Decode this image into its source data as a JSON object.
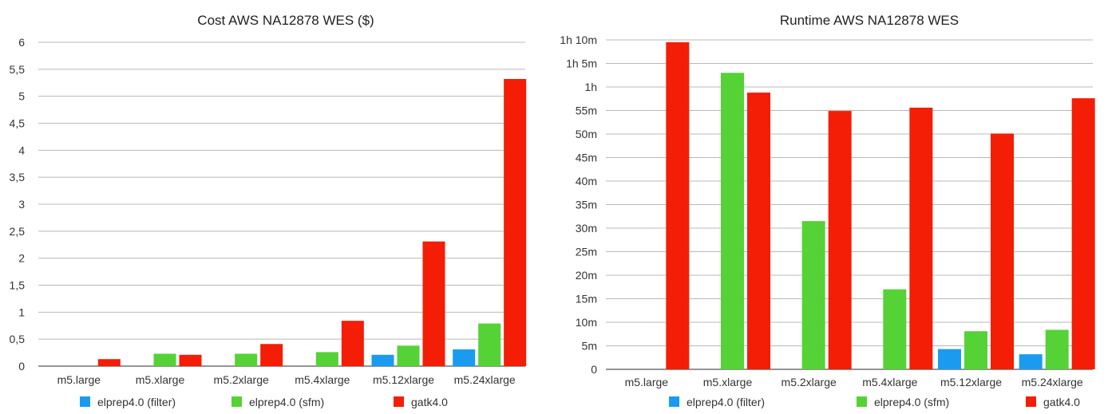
{
  "chart_data": [
    {
      "type": "bar",
      "title": "Cost AWS NA12878 WES ($)",
      "xlabel": "",
      "ylabel": "",
      "categories": [
        "m5.large",
        "m5.xlarge",
        "m5.2xlarge",
        "m5.4xlarge",
        "m5.12xlarge",
        "m5.24xlarge"
      ],
      "ylim": [
        0,
        6
      ],
      "yticks": [
        "0",
        "0,5",
        "1",
        "1,5",
        "2",
        "2,5",
        "3",
        "3,5",
        "4",
        "4,5",
        "5",
        "5,5",
        "6"
      ],
      "grid": true,
      "legend_position": "bottom",
      "series": [
        {
          "name": "elprep4.0 (filter)",
          "color": "#1a9bf0",
          "values": [
            null,
            null,
            null,
            null,
            0.21,
            0.31
          ]
        },
        {
          "name": "elprep4.0 (sfm)",
          "color": "#55d235",
          "values": [
            null,
            0.23,
            0.23,
            0.26,
            0.38,
            0.79
          ]
        },
        {
          "name": "gatk4.0",
          "color": "#f41d05",
          "values": [
            0.13,
            0.21,
            0.41,
            0.84,
            2.31,
            5.32
          ]
        }
      ]
    },
    {
      "type": "bar",
      "title": "Runtime AWS NA12878 WES",
      "xlabel": "",
      "ylabel": "",
      "categories": [
        "m5.large",
        "m5.xlarge",
        "m5.2xlarge",
        "m5.4xlarge",
        "m5.12xlarge",
        "m5.24xlarge"
      ],
      "ylim": [
        0,
        70
      ],
      "yunit": "minutes",
      "yticks": [
        "0",
        "5m",
        "10m",
        "15m",
        "20m",
        "25m",
        "30m",
        "35m",
        "40m",
        "45m",
        "50m",
        "55m",
        "1h",
        "1h 5m",
        "1h 10m"
      ],
      "grid": true,
      "legend_position": "bottom",
      "series": [
        {
          "name": "elprep4.0 (filter)",
          "color": "#1a9bf0",
          "values": [
            null,
            null,
            null,
            null,
            4.3,
            3.2
          ]
        },
        {
          "name": "elprep4.0 (sfm)",
          "color": "#55d235",
          "values": [
            null,
            63,
            31.5,
            17,
            8.1,
            8.4
          ]
        },
        {
          "name": "gatk4.0",
          "color": "#f41d05",
          "values": [
            69.5,
            58.8,
            54.9,
            55.6,
            50.1,
            57.6
          ]
        }
      ]
    }
  ]
}
